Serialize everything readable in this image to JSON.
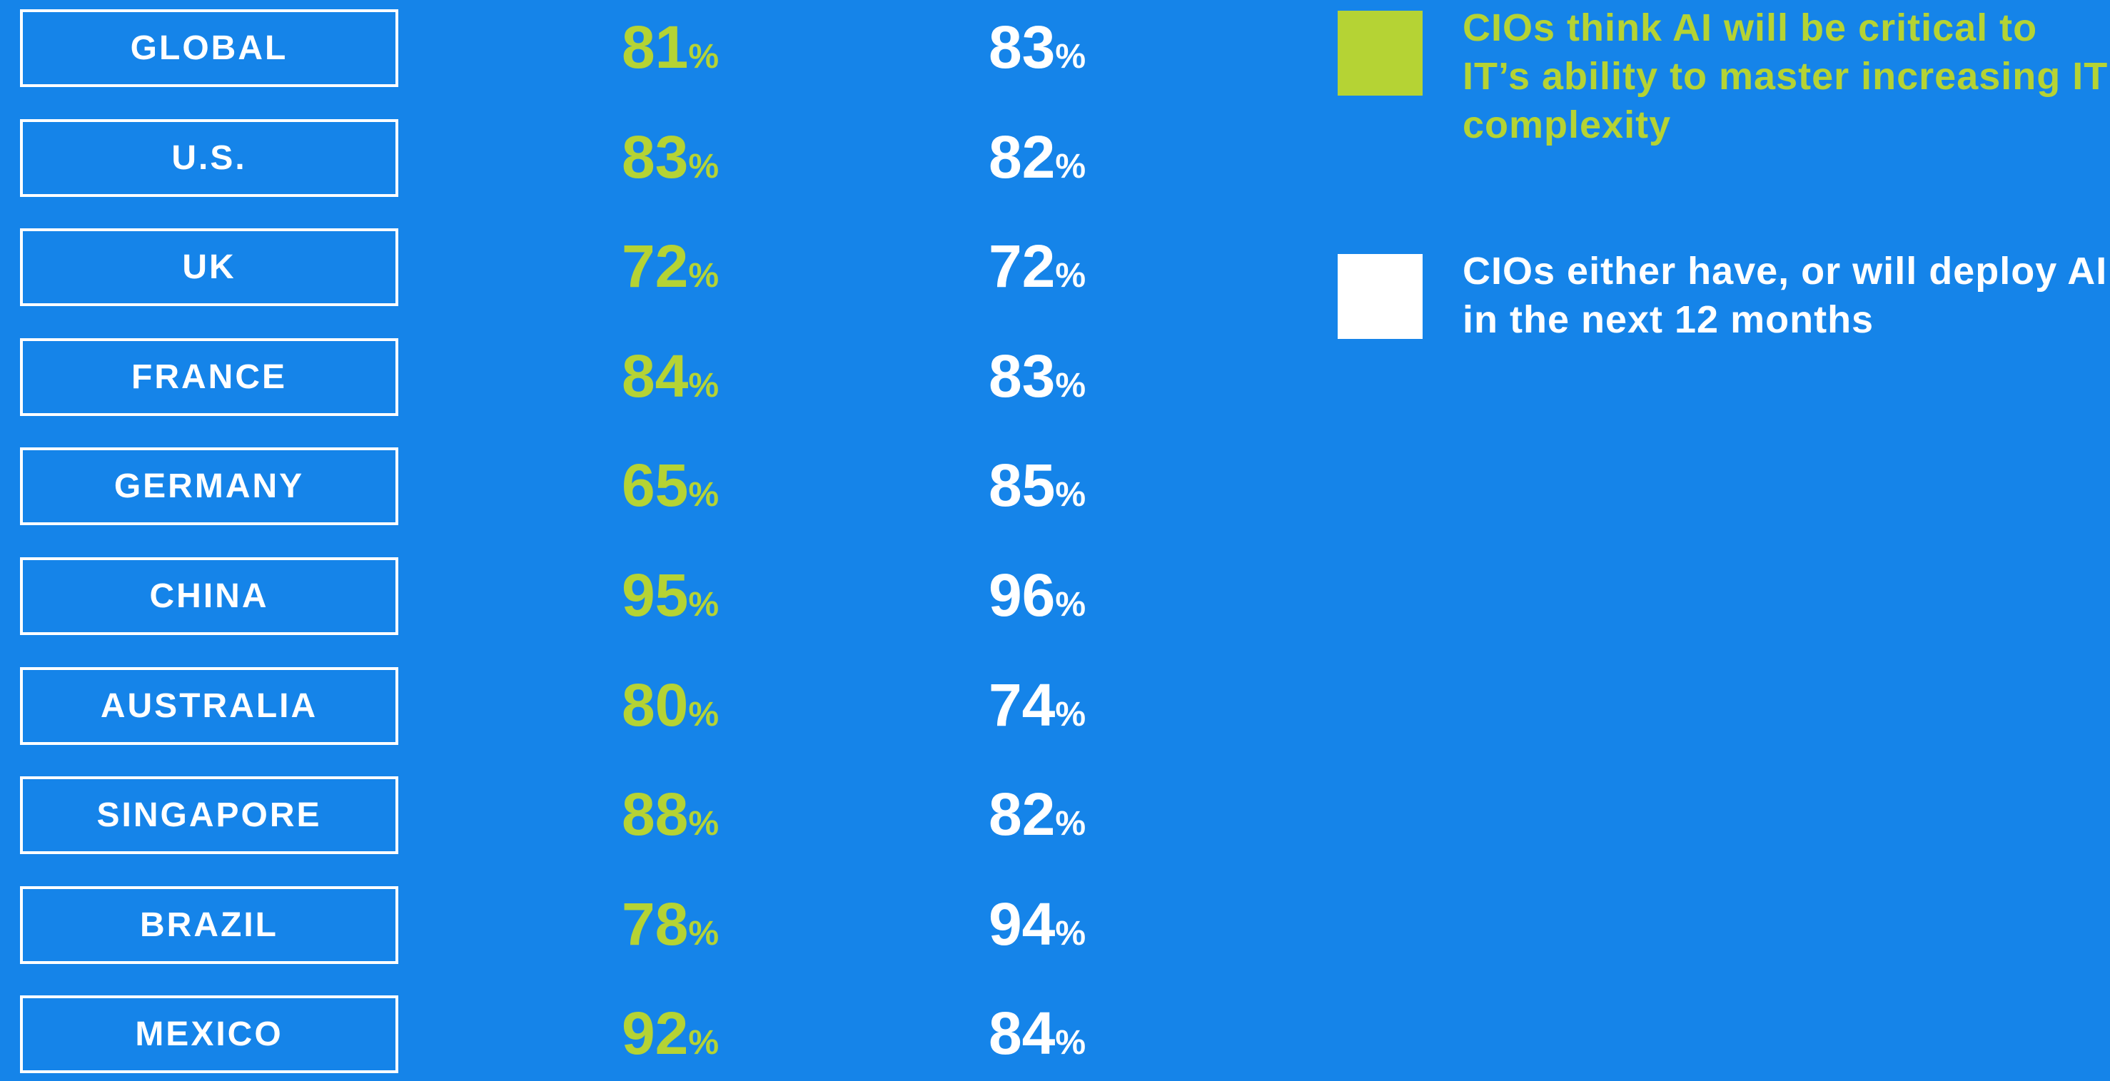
{
  "unit": "%",
  "legend": [
    {
      "label": "CIOs think AI will be critical to IT’s ability to master increasing IT complexity",
      "color": "#b5d334"
    },
    {
      "label": "CIOs either have, or will deploy AI in the next 12 months",
      "color": "#ffffff"
    }
  ],
  "table": {
    "rows": [
      [
        "GLOBAL",
        "81",
        "83"
      ],
      [
        "U.S.",
        "83",
        "82"
      ],
      [
        "UK",
        "72",
        "72"
      ],
      [
        "FRANCE",
        "84",
        "83"
      ],
      [
        "GERMANY",
        "65",
        "85"
      ],
      [
        "CHINA",
        "95",
        "96"
      ],
      [
        "AUSTRALIA",
        "80",
        "74"
      ],
      [
        "SINGAPORE",
        "88",
        "82"
      ],
      [
        "BRAZIL",
        "78",
        "94"
      ],
      [
        "MEXICO",
        "92",
        "84"
      ]
    ]
  }
}
